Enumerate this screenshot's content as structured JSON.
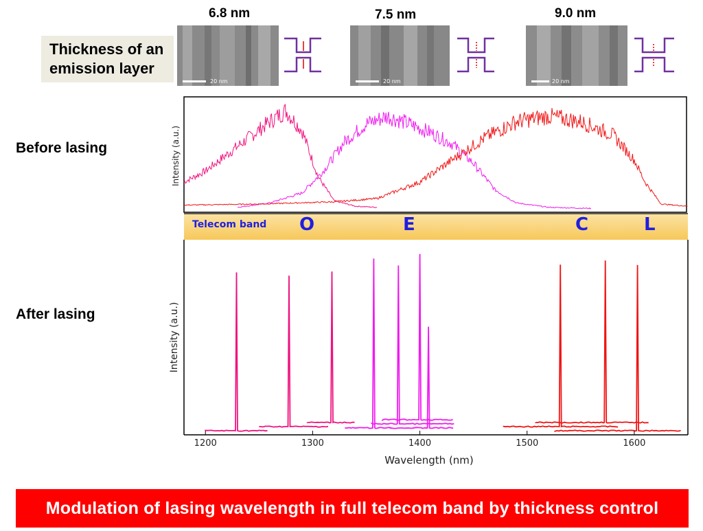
{
  "header": {
    "thickness_label_line1": "Thickness of an",
    "thickness_label_line2": "emission layer",
    "samples": [
      {
        "thickness": "6.8 nm",
        "scale_bar": "20 nm"
      },
      {
        "thickness": "7.5 nm",
        "scale_bar": "20 nm"
      },
      {
        "thickness": "9.0 nm",
        "scale_bar": "20 nm"
      }
    ]
  },
  "rows": {
    "before_label": "Before  lasing",
    "after_label": "After  lasing"
  },
  "band": {
    "label": "Telecom band",
    "letters": [
      "O",
      "E",
      "C",
      "L"
    ]
  },
  "banner_text": "Modulation of lasing wavelength in full telecom band by thickness control",
  "colors": {
    "series_6_8": "#f0127e",
    "series_7_5": "#f01af0",
    "series_9_0": "#f01414",
    "band_fill": "#f9d178",
    "band_letters": "#1f1fe0",
    "banner": "#ff0000"
  },
  "chart_data": [
    {
      "type": "line",
      "panel": "before-lasing",
      "ylabel": "Intensity (a.u.)",
      "xlim": [
        1180,
        1650
      ],
      "series": [
        {
          "color": "series_6_8",
          "x": [
            1180,
            1200,
            1220,
            1240,
            1260,
            1275,
            1290,
            1305,
            1320,
            1340,
            1360
          ],
          "y": [
            0.25,
            0.35,
            0.5,
            0.65,
            0.8,
            0.9,
            0.72,
            0.3,
            0.08,
            0.03,
            0.02
          ]
        },
        {
          "color": "series_7_5",
          "x": [
            1230,
            1260,
            1290,
            1310,
            1330,
            1350,
            1370,
            1390,
            1410,
            1430,
            1450,
            1470,
            1490,
            1520,
            1560
          ],
          "y": [
            0.02,
            0.06,
            0.15,
            0.35,
            0.62,
            0.78,
            0.85,
            0.78,
            0.7,
            0.6,
            0.42,
            0.18,
            0.06,
            0.02,
            0.01
          ]
        },
        {
          "color": "series_9_0",
          "x": [
            1180,
            1250,
            1320,
            1360,
            1400,
            1430,
            1460,
            1490,
            1520,
            1550,
            1580,
            1600,
            1610,
            1625,
            1650
          ],
          "y": [
            0.04,
            0.05,
            0.07,
            0.1,
            0.25,
            0.45,
            0.65,
            0.8,
            0.85,
            0.8,
            0.68,
            0.45,
            0.25,
            0.05,
            0.03
          ]
        }
      ]
    },
    {
      "type": "line",
      "panel": "after-lasing",
      "xlabel": "Wavelength (nm)",
      "ylabel": "Intensity (a.u.)",
      "xlim": [
        1180,
        1650
      ],
      "xticks": [
        1200,
        1300,
        1400,
        1500,
        1600
      ],
      "series": [
        {
          "color": "series_6_8",
          "peak": 1229,
          "height": 0.86,
          "x": [
            1200,
            1259
          ]
        },
        {
          "color": "series_6_8",
          "peak": 1278,
          "height": 0.82,
          "x": [
            1250,
            1315
          ]
        },
        {
          "color": "series_6_8",
          "peak": 1318,
          "height": 0.82,
          "x": [
            1295,
            1340
          ]
        },
        {
          "color": "series_7_5",
          "peak": 1357,
          "height": 0.92,
          "x": [
            1330,
            1375
          ]
        },
        {
          "color": "series_7_5",
          "peak": 1380,
          "height": 0.86,
          "x": [
            1355,
            1432
          ]
        },
        {
          "color": "series_7_5",
          "peak": 1400,
          "height": 0.9,
          "x": [
            1365,
            1432
          ]
        },
        {
          "color": "series_7_5",
          "peak": 1408,
          "height": 0.55,
          "x": [
            1372,
            1432
          ]
        },
        {
          "color": "series_9_0",
          "peak": 1531,
          "height": 0.88,
          "x": [
            1478,
            1585
          ]
        },
        {
          "color": "series_9_0",
          "peak": 1573,
          "height": 0.88,
          "x": [
            1508,
            1615
          ]
        },
        {
          "color": "series_9_0",
          "peak": 1603,
          "height": 0.9,
          "x": [
            1526,
            1645
          ]
        }
      ]
    }
  ]
}
